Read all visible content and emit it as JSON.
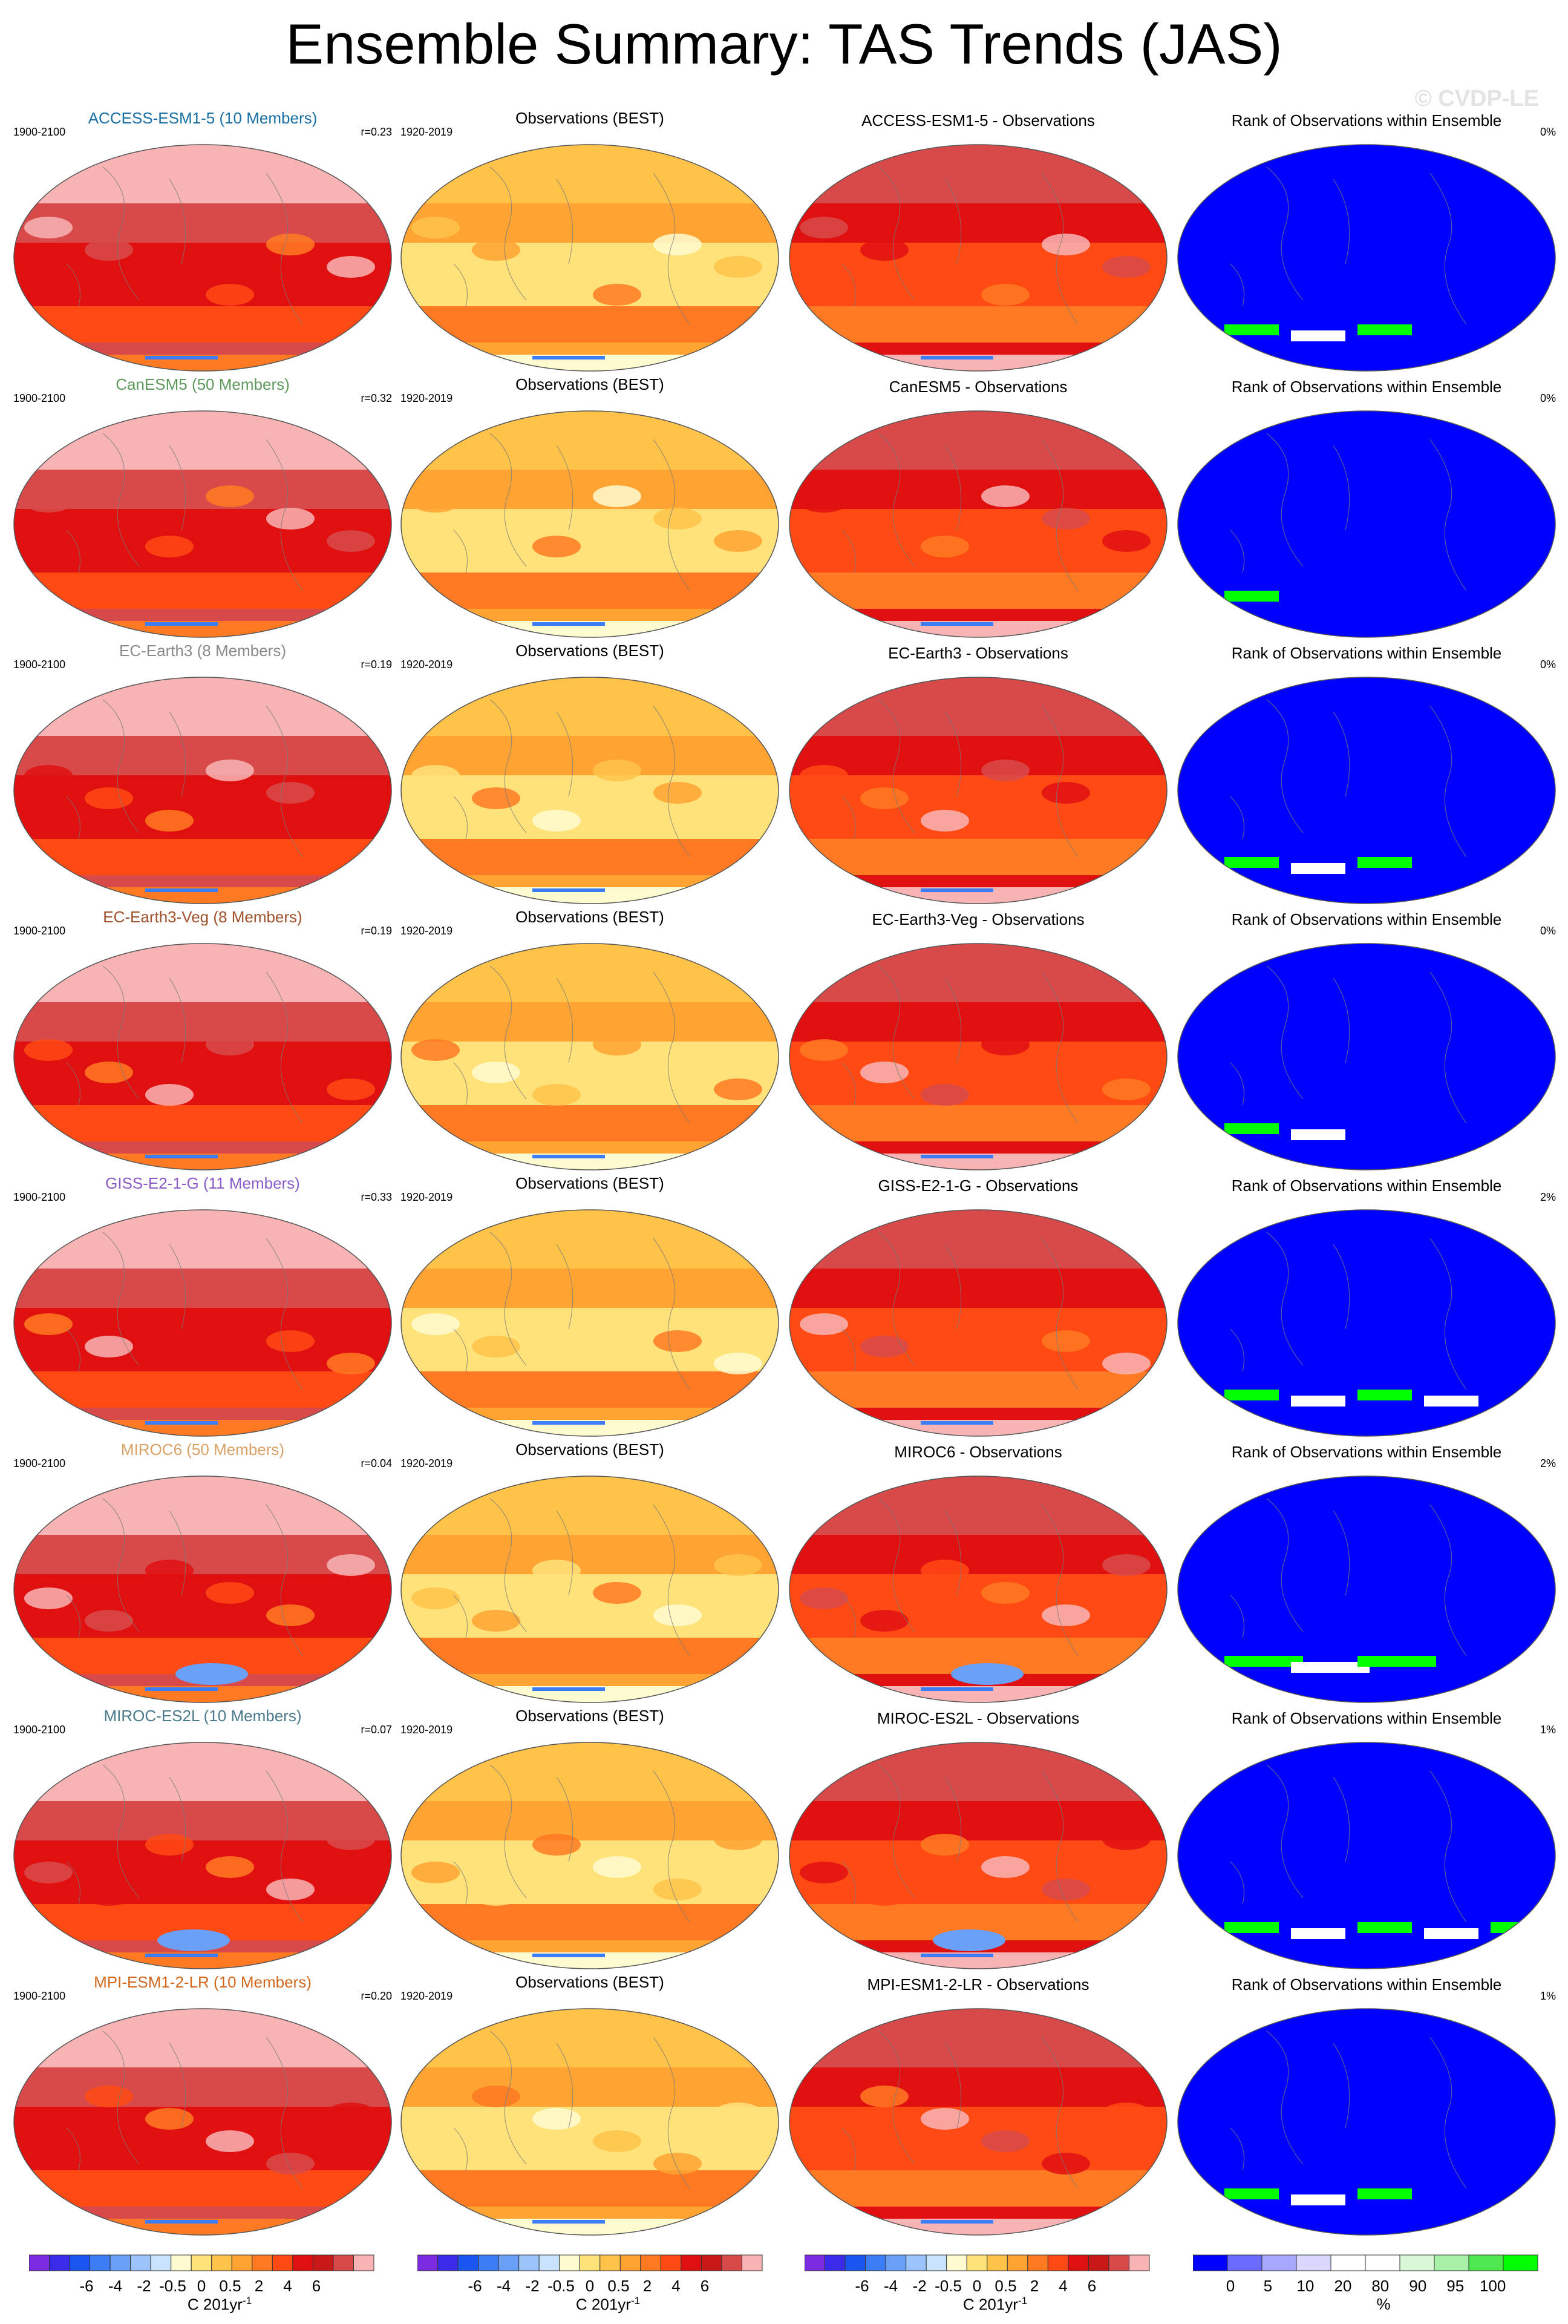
{
  "title": "Ensemble Summary: TAS Trends (JAS)",
  "watermark": "© CVDP-LE",
  "rows": [
    {
      "model": "ACCESS-ESM1-5 (10 Members)",
      "model_color": "#1a6fa5",
      "diff_title": "ACCESS-ESM1-5 - Observations",
      "period": "1900-2100",
      "r": "r=0.23",
      "rank": "0%"
    },
    {
      "model": "CanESM5 (50 Members)",
      "model_color": "#5e9a5e",
      "diff_title": "CanESM5 - Observations",
      "period": "1900-2100",
      "r": "r=0.32",
      "rank": "0%"
    },
    {
      "model": "EC-Earth3 (8 Members)",
      "model_color": "#8a8a8a",
      "diff_title": "EC-Earth3 - Observations",
      "period": "1900-2100",
      "r": "r=0.19",
      "rank": "0%"
    },
    {
      "model": "EC-Earth3-Veg (8 Members)",
      "model_color": "#a0522d",
      "diff_title": "EC-Earth3-Veg - Observations",
      "period": "1900-2100",
      "r": "r=0.19",
      "rank": "0%"
    },
    {
      "model": "GISS-E2-1-G (11 Members)",
      "model_color": "#8a5cc9",
      "diff_title": "GISS-E2-1-G - Observations",
      "period": "1900-2100",
      "r": "r=0.33",
      "rank": "2%"
    },
    {
      "model": "MIROC6 (50 Members)",
      "model_color": "#d9a066",
      "diff_title": "MIROC6 - Observations",
      "period": "1900-2100",
      "r": "r=0.04",
      "rank": "2%"
    },
    {
      "model": "MIROC-ES2L (10 Members)",
      "model_color": "#4a7a8c",
      "diff_title": "MIROC-ES2L - Observations",
      "period": "1900-2100",
      "r": "r=0.07",
      "rank": "1%"
    },
    {
      "model": "MPI-ESM1-2-LR (10 Members)",
      "model_color": "#d2691e",
      "diff_title": "MPI-ESM1-2-LR - Observations",
      "period": "1900-2100",
      "r": "r=0.20",
      "rank": "1%"
    }
  ],
  "obs_title": "Observations (BEST)",
  "obs_period": "1920-2019",
  "rank_title": "Rank of Observations within Ensemble",
  "colorbars": {
    "trend": {
      "ticks": [
        "-6",
        "-4",
        "-2",
        "-0.5",
        "0",
        "0.5",
        "2",
        "4",
        "6"
      ],
      "unit": "C 201yr",
      "unit_sup": "-1",
      "colors": [
        "#7b2be0",
        "#3a2be8",
        "#1a55f0",
        "#3c7cf5",
        "#6aa0f8",
        "#9cc4fb",
        "#c9e3fc",
        "#fffbd0",
        "#ffe27a",
        "#ffc34a",
        "#ffa333",
        "#ff7a22",
        "#ff4a14",
        "#e01010",
        "#c81818",
        "#d84a4a",
        "#f8b4b4"
      ]
    },
    "rank": {
      "ticks": [
        "0",
        "5",
        "10",
        "20",
        "80",
        "90",
        "95",
        "100"
      ],
      "unit": "%",
      "colors": [
        "#0000ff",
        "#6a6aff",
        "#a8a8ff",
        "#d8d8ff",
        "#ffffff",
        "#ffffff",
        "#d8f8d8",
        "#a8f0a8",
        "#50e850",
        "#00ff00"
      ]
    }
  }
}
